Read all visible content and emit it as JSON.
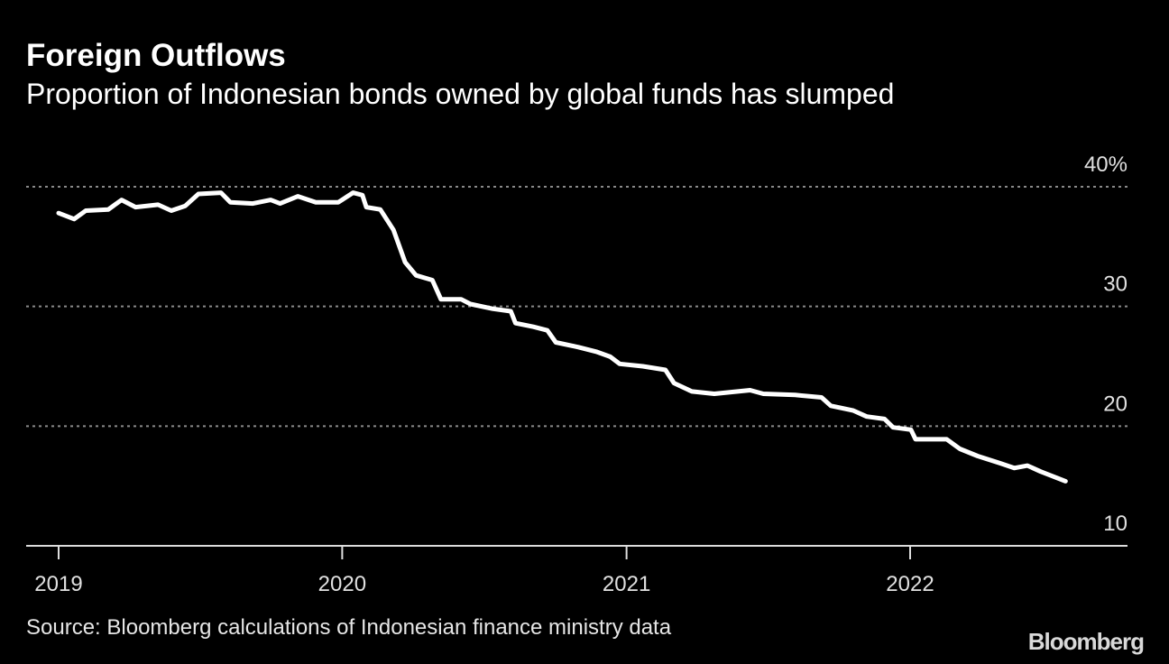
{
  "chart_data": {
    "type": "line",
    "title": "Foreign Outflows",
    "subtitle": "Proportion of Indonesian bonds owned by global funds has slumped",
    "source": "Source: Bloomberg calculations of Indonesian finance ministry data",
    "ylim": [
      10,
      40
    ],
    "yticks": [
      10,
      20,
      30,
      40
    ],
    "ytick_labels": [
      "10",
      "20",
      "30",
      "40%"
    ],
    "xticks": [
      "2019-01-01",
      "2020-01-01",
      "2021-01-01",
      "2022-01-01"
    ],
    "xtick_labels": [
      "2019",
      "2020",
      "2021",
      "2022"
    ],
    "grid": "horizontal dotted",
    "y_axis_side": "right",
    "line_color": "#ffffff",
    "background": "#000000",
    "series": [
      {
        "x": [
          "2019-01-01",
          "2019-01-21",
          "2019-02-05",
          "2019-03-06",
          "2019-03-23",
          "2019-04-10",
          "2019-05-09",
          "2019-05-26",
          "2019-06-13",
          "2019-06-30",
          "2019-07-29",
          "2019-08-10",
          "2019-09-08",
          "2019-10-01",
          "2019-10-13",
          "2019-11-05",
          "2019-11-28",
          "2019-12-27",
          "2020-01-15",
          "2020-01-27",
          "2020-02-01",
          "2020-02-19",
          "2020-03-07",
          "2020-03-22",
          "2020-04-05",
          "2020-04-26",
          "2020-05-07",
          "2020-06-02",
          "2020-06-14",
          "2020-07-13",
          "2020-08-05",
          "2020-08-11",
          "2020-09-03",
          "2020-09-21",
          "2020-10-02",
          "2020-10-31",
          "2020-11-24",
          "2020-12-11",
          "2020-12-23",
          "2021-01-22",
          "2021-02-20",
          "2021-03-03",
          "2021-03-26",
          "2021-04-24",
          "2021-06-09",
          "2021-06-26",
          "2021-08-06",
          "2021-09-09",
          "2021-09-21",
          "2021-10-20",
          "2021-11-06",
          "2021-11-29",
          "2021-12-10",
          "2022-01-02",
          "2022-01-08",
          "2022-02-17",
          "2022-03-06",
          "2022-03-29",
          "2022-04-27",
          "2022-05-15",
          "2022-06-01",
          "2022-06-18",
          "2022-07-20"
        ],
        "values": [
          37.8,
          37.3,
          38.0,
          38.1,
          38.9,
          38.3,
          38.5,
          38.0,
          38.4,
          39.4,
          39.5,
          38.7,
          38.6,
          38.9,
          38.6,
          39.2,
          38.7,
          38.7,
          39.5,
          39.3,
          38.3,
          38.1,
          36.4,
          33.7,
          32.6,
          32.2,
          30.6,
          30.6,
          30.2,
          29.8,
          29.6,
          28.6,
          28.3,
          28.0,
          27.0,
          26.6,
          26.2,
          25.8,
          25.2,
          25.0,
          24.7,
          23.6,
          22.9,
          22.7,
          23.0,
          22.7,
          22.6,
          22.4,
          21.7,
          21.3,
          20.8,
          20.6,
          19.9,
          19.7,
          18.9,
          18.9,
          18.1,
          17.5,
          16.9,
          16.5,
          16.7,
          16.2,
          15.4
        ]
      }
    ]
  },
  "brand": "Bloomberg"
}
